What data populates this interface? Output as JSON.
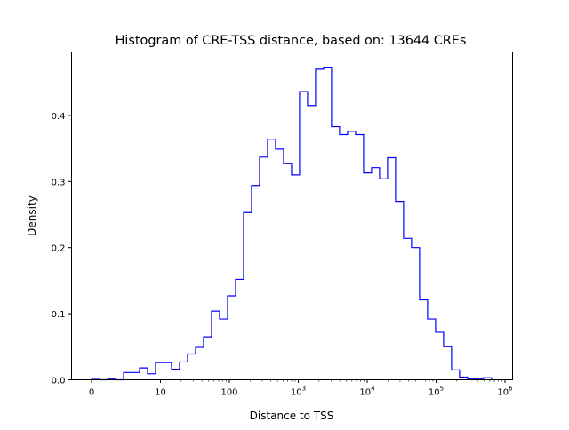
{
  "chart_data": {
    "type": "histogram",
    "title": "Histogram of CRE-TSS distance, based on: 13644 CREs",
    "xlabel": "Distance to TSS",
    "ylabel": "Density",
    "x_scale": "symlog",
    "x_ticks": [
      {
        "pos": 0,
        "base": "0",
        "exp": ""
      },
      {
        "pos": 1,
        "base": "10",
        "exp": ""
      },
      {
        "pos": 2,
        "base": "100",
        "exp": ""
      },
      {
        "pos": 3,
        "base": "10",
        "exp": "3"
      },
      {
        "pos": 4,
        "base": "10",
        "exp": "4"
      },
      {
        "pos": 5,
        "base": "10",
        "exp": "5"
      },
      {
        "pos": 6,
        "base": "10",
        "exp": "6"
      }
    ],
    "xlim_decades": [
      -0.3,
      6.1
    ],
    "ylim": [
      0,
      0.496
    ],
    "y_ticks": [
      "0.0",
      "0.1",
      "0.2",
      "0.3",
      "0.4"
    ],
    "bin_start_decades": 0,
    "bin_width_decades": 0.1161,
    "densities": [
      0.002,
      0,
      0.001,
      0,
      0.011,
      0.011,
      0.018,
      0.009,
      0.026,
      0.026,
      0.016,
      0.027,
      0.039,
      0.049,
      0.065,
      0.104,
      0.092,
      0.127,
      0.152,
      0.253,
      0.294,
      0.337,
      0.364,
      0.349,
      0.327,
      0.31,
      0.436,
      0.415,
      0.47,
      0.473,
      0.383,
      0.371,
      0.376,
      0.371,
      0.313,
      0.321,
      0.304,
      0.336,
      0.27,
      0.214,
      0.2,
      0.121,
      0.092,
      0.072,
      0.05,
      0.015,
      0.004,
      0.001,
      0.001,
      0.003
    ],
    "line_color": "#0000ff"
  }
}
